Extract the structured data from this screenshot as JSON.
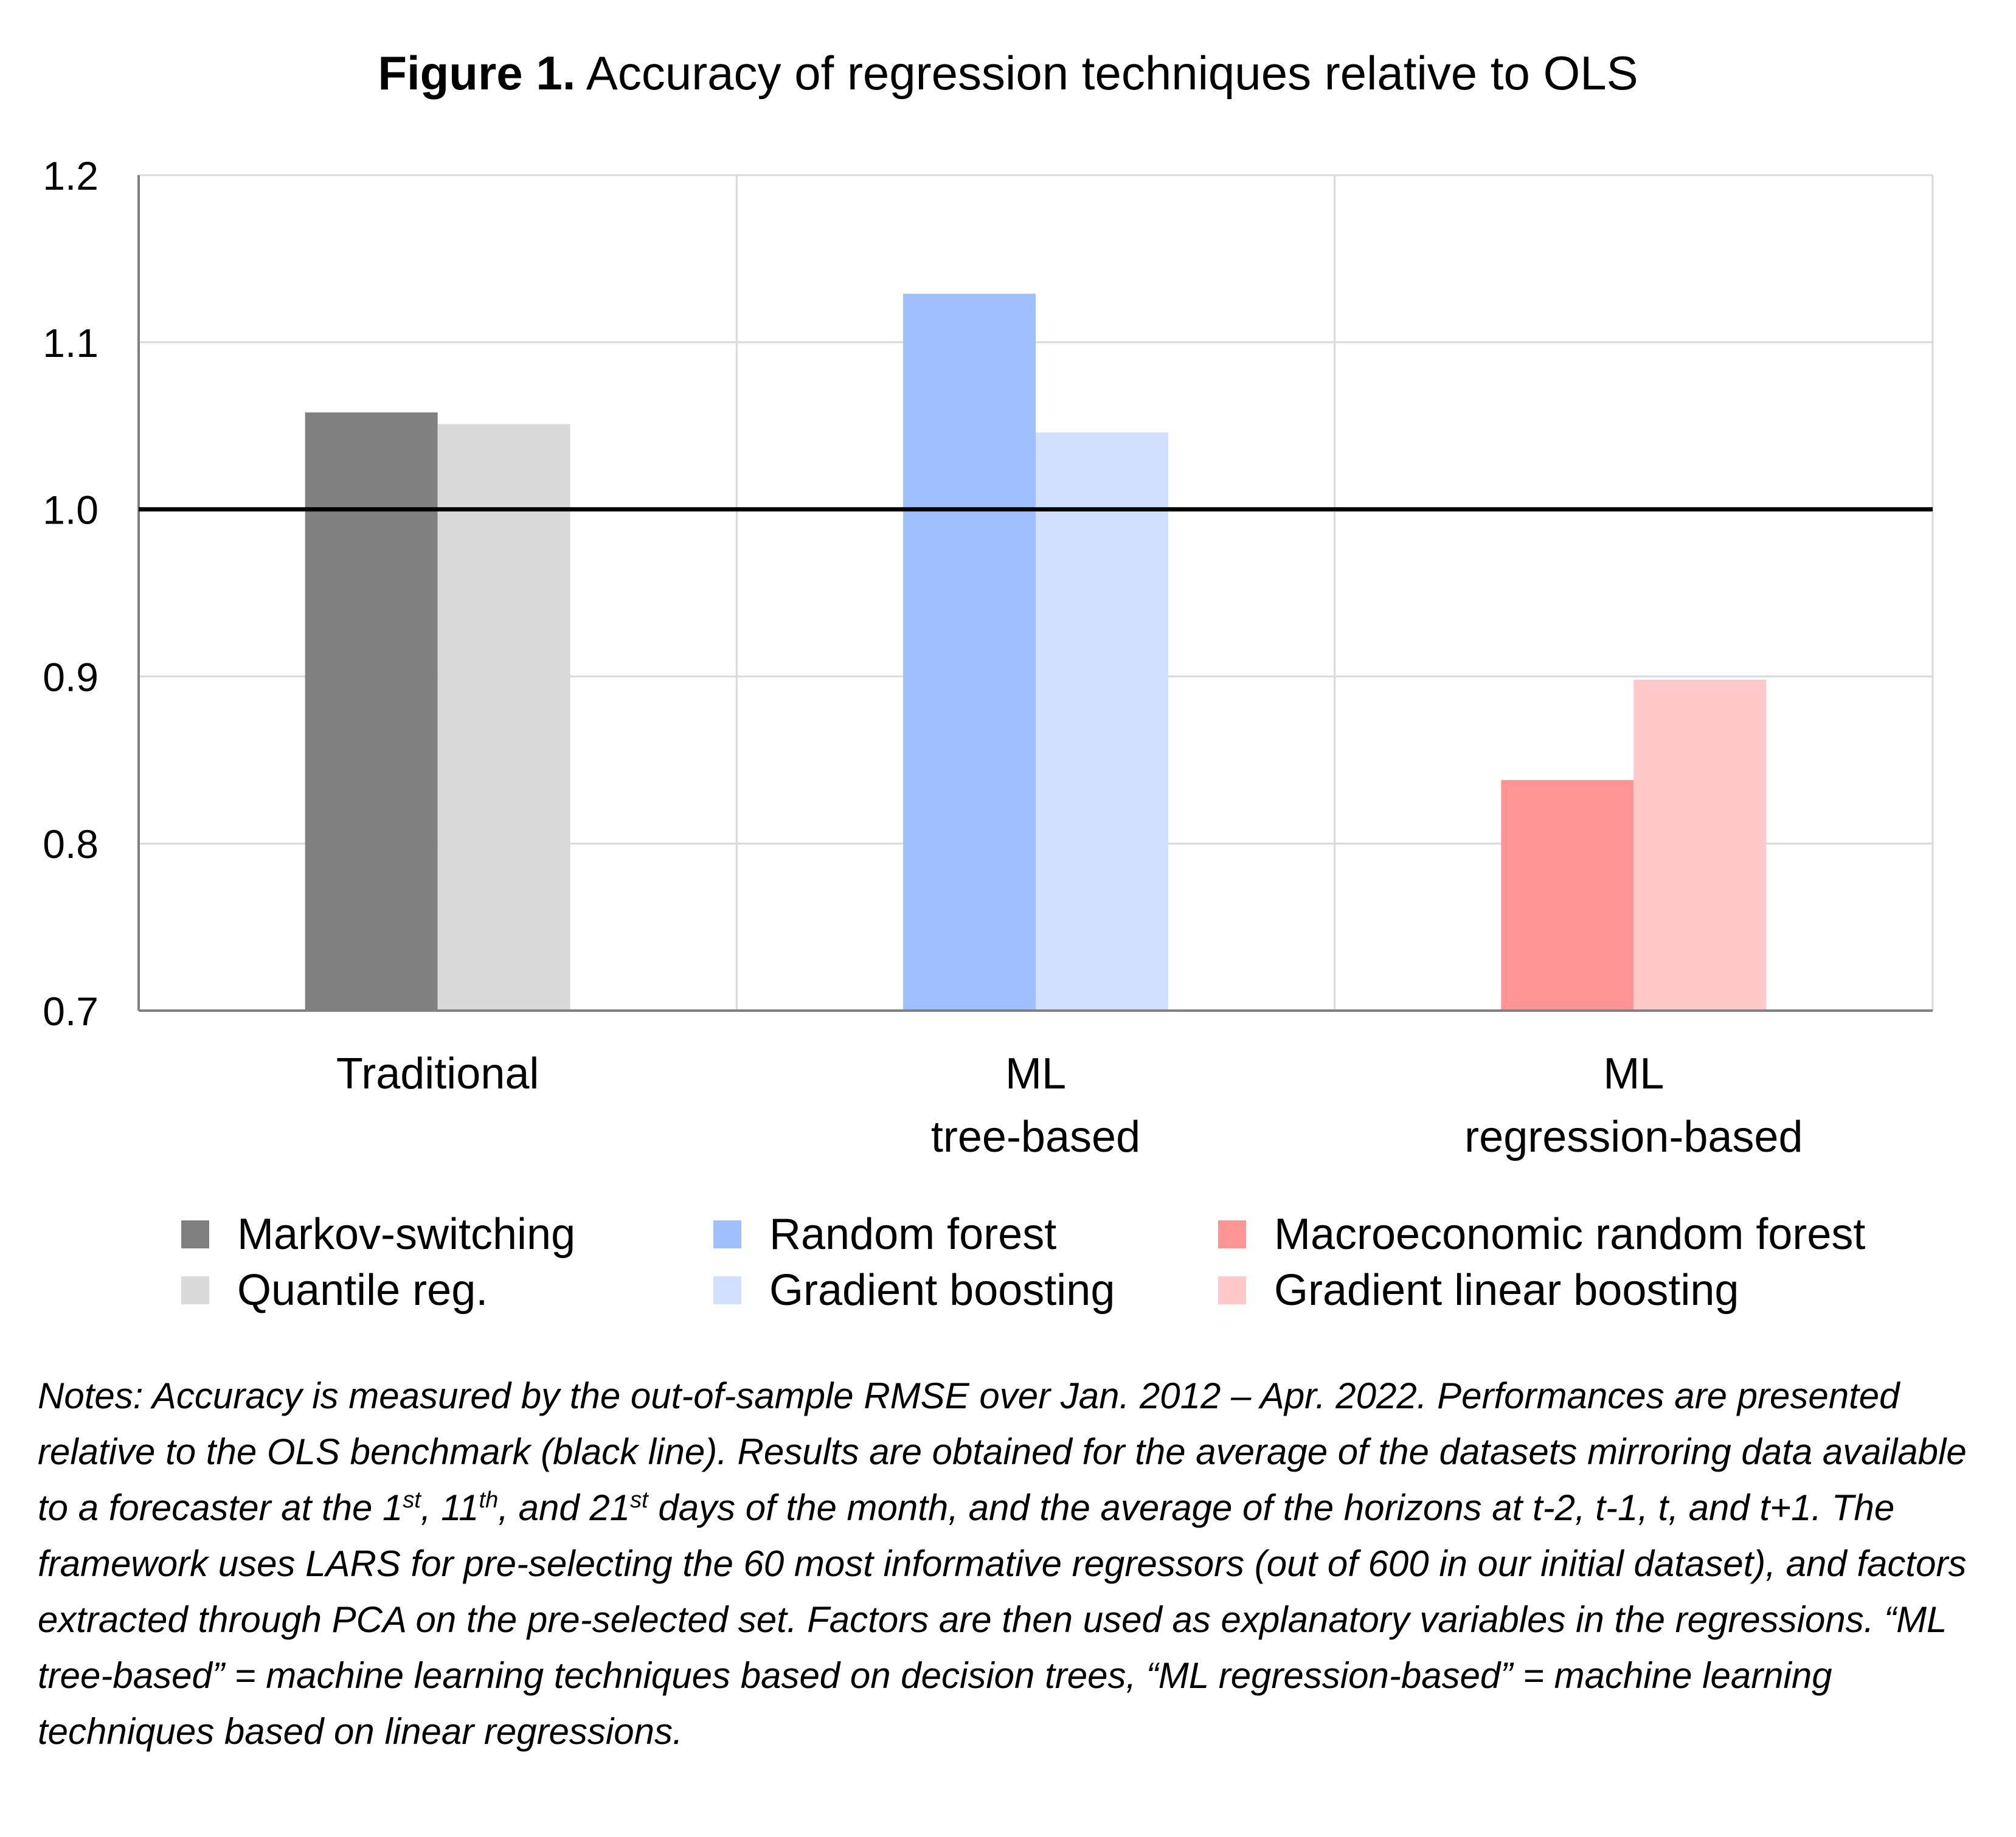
{
  "figure": {
    "title_bold": "Figure 1.",
    "title_rest": " Accuracy of regression techniques relative to OLS"
  },
  "chart_data": {
    "type": "bar",
    "title": "Figure 1. Accuracy of regression techniques relative to OLS",
    "xlabel": "",
    "ylabel": "",
    "ylim": [
      0.7,
      1.2
    ],
    "yticks": [
      "0.7",
      "0.8",
      "0.9",
      "1.0",
      "1.1",
      "1.2"
    ],
    "grid": true,
    "reference_line": {
      "y": 1.0,
      "color": "#000000"
    },
    "groups": [
      {
        "lines": [
          "Traditional"
        ],
        "bars": [
          {
            "name": "Markov-switching",
            "value": 1.058,
            "color": "#808080"
          },
          {
            "name": "Quantile reg.",
            "value": 1.051,
            "color": "#d9d9d9"
          }
        ]
      },
      {
        "lines": [
          "ML",
          "tree-based"
        ],
        "bars": [
          {
            "name": "Random forest",
            "value": 1.129,
            "color": "#a0bffe"
          },
          {
            "name": "Gradient boosting",
            "value": 1.046,
            "color": "#d1e0fe"
          }
        ]
      },
      {
        "lines": [
          "ML",
          "regression-based"
        ],
        "bars": [
          {
            "name": "Macroeconomic random forest",
            "value": 0.838,
            "color": "#ff9494"
          },
          {
            "name": "Gradient linear boosting",
            "value": 0.898,
            "color": "#ffc9ca"
          }
        ]
      }
    ],
    "legend_placement": "bottom"
  },
  "legend": [
    {
      "label": "Markov-switching",
      "color": "#808080"
    },
    {
      "label": "Random forest",
      "color": "#a0bffe"
    },
    {
      "label": "Macroeconomic random forest",
      "color": "#ff9494"
    },
    {
      "label": "Quantile reg.",
      "color": "#d9d9d9"
    },
    {
      "label": "Gradient boosting",
      "color": "#d1e0fe"
    },
    {
      "label": "Gradient linear boosting",
      "color": "#ffc9ca"
    }
  ],
  "notes": {
    "p1": "Notes: Accuracy is measured by the out-of-sample RMSE over Jan. 2012 – Apr. 2022. Performances are presented relative to the OLS benchmark (black line). Results are obtained for the average of the datasets mirroring data available to a forecaster at the 1",
    "sup1": "st",
    "p2": ", 11",
    "sup2": "th",
    "p3": ", and 21",
    "sup3": "st",
    "p4": " days of the month, and the average of the horizons at t-2, t-1, t, and t+1. The framework uses LARS for pre-selecting the 60 most informative regressors (out of 600 in our initial dataset), and factors extracted through PCA on the pre-selected set. Factors are then used as explanatory variables in the regressions. “ML tree-based” = machine learning techniques based on decision trees, “ML regression-based” = machine learning techniques based on linear regressions."
  }
}
